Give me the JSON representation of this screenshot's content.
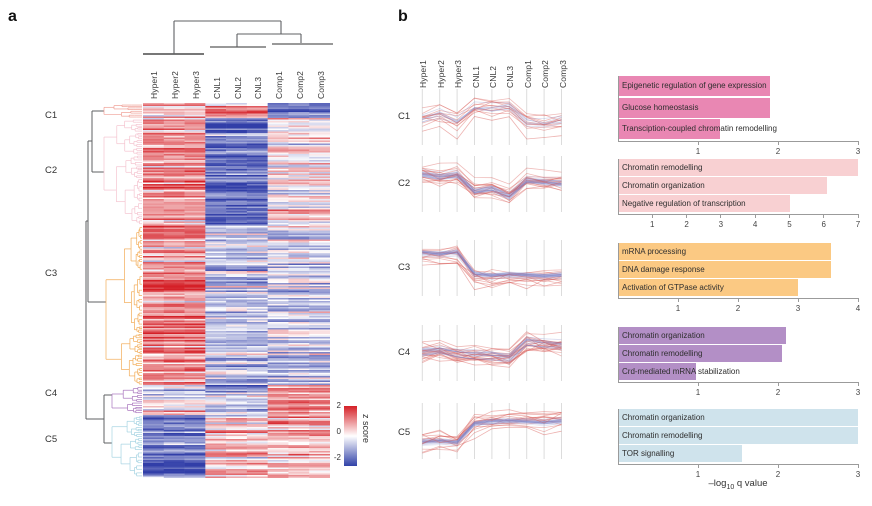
{
  "figure": {
    "panel_a_label": "a",
    "panel_b_label": "b"
  },
  "chart_data": {
    "type": "composite",
    "samples": [
      "Hyper1",
      "Hyper2",
      "Hyper3",
      "CNL1",
      "CNL2",
      "CNL3",
      "Comp1",
      "Comp2",
      "Comp3"
    ],
    "column_dendrogram": "((Hyper1,Hyper2,Hyper3),((CNL1,CNL2,CNL3),(Comp1,Comp2,Comp3)))",
    "heatmap": {
      "zlim": [
        -2,
        2
      ],
      "colorbar_label": "z score",
      "colorbar_ticks": [
        "2",
        "0",
        "-2"
      ],
      "color_high": "#d52027",
      "color_mid": "#ffffff",
      "color_low": "#3142a8"
    },
    "go_axis_label": {
      "pre": "–log",
      "sub": "10",
      "post": " q value"
    },
    "clusters": [
      {
        "name": "C1",
        "dendro_color": "#ef9e94",
        "bar_color": "#e987b3",
        "heat_rows": 10,
        "heat_group_means": [
          0.45,
          0.7,
          -0.9
        ],
        "profile": [
          0.45,
          0.55,
          0.4,
          0.68,
          0.66,
          0.7,
          0.35,
          0.33,
          0.38
        ],
        "line_style": {
          "blue_n": 7,
          "blue_spread": 0.07,
          "blue_jitter": 0.03,
          "red_n": 8,
          "red_spread": 0.1,
          "red_jitter": 0.055
        },
        "go": {
          "xmax": 3,
          "ticks": [
            1,
            2,
            3
          ],
          "terms": [
            {
              "label": "Epigenetic regulation of gene expression",
              "value": 1.9
            },
            {
              "label": "Glucose homeostasis",
              "value": 1.9
            },
            {
              "label": "Transciption-coupled chromatin remodelling",
              "value": 1.27
            }
          ]
        }
      },
      {
        "name": "C2",
        "dendro_color": "#f4c3cf",
        "bar_color": "#f8d0d2",
        "heat_rows": 71,
        "heat_group_means": [
          0.85,
          -1.3,
          0.05
        ],
        "profile": [
          0.72,
          0.66,
          0.7,
          0.34,
          0.4,
          0.24,
          0.58,
          0.55,
          0.52
        ],
        "line_style": {
          "blue_n": 30,
          "blue_spread": 0.035,
          "blue_jitter": 0.015,
          "red_n": 13,
          "red_spread": 0.09,
          "red_jitter": 0.05
        },
        "go": {
          "xmax": 7,
          "ticks": [
            1,
            2,
            3,
            4,
            5,
            6,
            7
          ],
          "terms": [
            {
              "label": "Chromatin remodelling",
              "value": 7.0
            },
            {
              "label": "Chromatin organization",
              "value": 6.1
            },
            {
              "label": "Negative regulation of transcription",
              "value": 5.0
            }
          ]
        }
      },
      {
        "name": "C3",
        "dendro_color": "#f2ab56",
        "bar_color": "#fbc983",
        "heat_rows": 107,
        "heat_group_means": [
          1.1,
          -0.55,
          -0.45
        ],
        "profile": [
          0.83,
          0.8,
          0.84,
          0.36,
          0.33,
          0.35,
          0.34,
          0.32,
          0.34
        ],
        "line_style": {
          "blue_n": 32,
          "blue_spread": 0.03,
          "blue_jitter": 0.012,
          "red_n": 10,
          "red_spread": 0.08,
          "red_jitter": 0.05
        },
        "go": {
          "xmax": 4,
          "ticks": [
            1,
            2,
            3,
            4
          ],
          "terms": [
            {
              "label": "mRNA processing",
              "value": 3.55
            },
            {
              "label": "DNA damage response",
              "value": 3.55
            },
            {
              "label": "Activation of GTPase activity",
              "value": 3.0
            }
          ]
        }
      },
      {
        "name": "C4",
        "dendro_color": "#a873bd",
        "bar_color": "#b38fc6",
        "heat_rows": 20,
        "heat_group_means": [
          -0.15,
          -0.6,
          1.0
        ],
        "profile": [
          0.52,
          0.56,
          0.48,
          0.46,
          0.44,
          0.4,
          0.74,
          0.7,
          0.68
        ],
        "line_style": {
          "blue_n": 14,
          "blue_spread": 0.05,
          "blue_jitter": 0.02,
          "red_n": 18,
          "red_spread": 0.09,
          "red_jitter": 0.06
        },
        "go": {
          "xmax": 3,
          "ticks": [
            1,
            2,
            3
          ],
          "terms": [
            {
              "label": "Chromatin organization",
              "value": 2.1
            },
            {
              "label": "Chromatin remodelling",
              "value": 2.05
            },
            {
              "label": "Crd-mediated mRNA stabilization",
              "value": 0.97
            }
          ]
        }
      },
      {
        "name": "C5",
        "dendro_color": "#a5d3e2",
        "bar_color": "#cfe3ec",
        "heat_rows": 42,
        "heat_group_means": [
          -1.25,
          0.55,
          0.6
        ],
        "profile": [
          0.26,
          0.28,
          0.25,
          0.66,
          0.7,
          0.72,
          0.71,
          0.69,
          0.72
        ],
        "line_style": {
          "blue_n": 30,
          "blue_spread": 0.03,
          "blue_jitter": 0.013,
          "red_n": 12,
          "red_spread": 0.09,
          "red_jitter": 0.05
        },
        "go": {
          "xmax": 3,
          "ticks": [
            1,
            2,
            3
          ],
          "terms": [
            {
              "label": "Chromatin organization",
              "value": 3.0
            },
            {
              "label": "Chromatin remodelling",
              "value": 3.0
            },
            {
              "label": "TOR signalling",
              "value": 1.55
            }
          ]
        }
      }
    ]
  },
  "style_colors": {
    "line_red": "#d8544f",
    "line_blue": "#8289c6",
    "dendro_gray": "#5f6063",
    "grid": "#dcdcdc",
    "axis": "#9b9b9b",
    "text": "#333333"
  }
}
